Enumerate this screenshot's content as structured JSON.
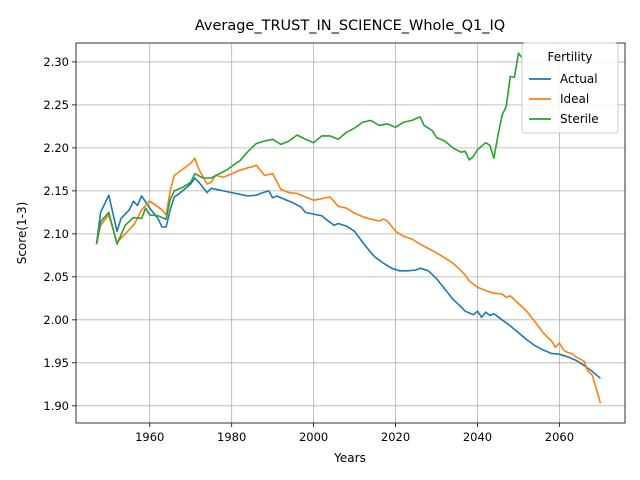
{
  "chart_data": {
    "type": "line",
    "title": "Average_TRUST_IN_SCIENCE_Whole_Q1_IQ",
    "xlabel": "Years",
    "ylabel": "Score(1-3)",
    "xlim": [
      1942,
      2076
    ],
    "ylim": [
      1.88,
      2.322
    ],
    "xticks": [
      1960,
      1980,
      2000,
      2020,
      2040,
      2060
    ],
    "yticks": [
      1.9,
      1.95,
      2.0,
      2.05,
      2.1,
      2.15,
      2.2,
      2.25,
      2.3
    ],
    "ytick_labels": [
      "1.90",
      "1.95",
      "2.00",
      "2.05",
      "2.10",
      "2.15",
      "2.20",
      "2.25",
      "2.30"
    ],
    "grid": true,
    "legend": {
      "title": "Fertility",
      "placement": "top-right"
    },
    "series": [
      {
        "name": "Actual",
        "color": "#1f77b4",
        "x": [
          1947,
          1948,
          1950,
          1952,
          1953,
          1955,
          1956,
          1957,
          1958,
          1960,
          1962,
          1963,
          1964,
          1965,
          1966,
          1967,
          1970,
          1971,
          1972,
          1974,
          1975,
          1977,
          1980,
          1982,
          1984,
          1986,
          1987,
          1989,
          1990,
          1991,
          1993,
          1995,
          1997,
          1998,
          2000,
          2002,
          2003,
          2005,
          2006,
          2008,
          2010,
          2012,
          2014,
          2015,
          2017,
          2019,
          2021,
          2023,
          2025,
          2026,
          2028,
          2030,
          2032,
          2034,
          2036,
          2037,
          2039,
          2040,
          2041,
          2042,
          2043,
          2044,
          2046,
          2048,
          2050,
          2052,
          2054,
          2056,
          2058,
          2060,
          2062,
          2064,
          2066,
          2068,
          2070
        ],
        "y": [
          2.088,
          2.125,
          2.145,
          2.103,
          2.118,
          2.128,
          2.138,
          2.133,
          2.144,
          2.13,
          2.118,
          2.108,
          2.108,
          2.128,
          2.143,
          2.146,
          2.158,
          2.165,
          2.16,
          2.148,
          2.153,
          2.151,
          2.148,
          2.146,
          2.144,
          2.145,
          2.147,
          2.15,
          2.142,
          2.144,
          2.14,
          2.136,
          2.131,
          2.125,
          2.123,
          2.121,
          2.117,
          2.11,
          2.112,
          2.109,
          2.103,
          2.09,
          2.078,
          2.073,
          2.066,
          2.06,
          2.057,
          2.057,
          2.058,
          2.06,
          2.057,
          2.048,
          2.036,
          2.024,
          2.015,
          2.01,
          2.006,
          2.01,
          2.003,
          2.009,
          2.005,
          2.007,
          2.0,
          1.993,
          1.985,
          1.977,
          1.97,
          1.965,
          1.961,
          1.96,
          1.957,
          1.953,
          1.947,
          1.94,
          1.932
        ]
      },
      {
        "name": "Ideal",
        "color": "#ff7f0e",
        "x": [
          1947,
          1948,
          1950,
          1952,
          1954,
          1956,
          1957,
          1958,
          1960,
          1961,
          1963,
          1964,
          1965,
          1966,
          1968,
          1970,
          1971,
          1972,
          1974,
          1975,
          1976,
          1978,
          1980,
          1982,
          1984,
          1985,
          1986,
          1988,
          1990,
          1992,
          1994,
          1996,
          1998,
          2000,
          2002,
          2004,
          2006,
          2008,
          2010,
          2012,
          2014,
          2016,
          2017,
          2018,
          2020,
          2022,
          2024,
          2026,
          2028,
          2030,
          2032,
          2034,
          2036,
          2037,
          2038,
          2040,
          2041,
          2042,
          2044,
          2046,
          2047,
          2048,
          2050,
          2052,
          2054,
          2056,
          2057,
          2058,
          2059,
          2060,
          2061,
          2062,
          2063,
          2064,
          2066,
          2067,
          2068,
          2069,
          2070
        ],
        "y": [
          2.088,
          2.11,
          2.122,
          2.09,
          2.1,
          2.11,
          2.118,
          2.128,
          2.138,
          2.135,
          2.128,
          2.122,
          2.15,
          2.168,
          2.175,
          2.182,
          2.188,
          2.175,
          2.158,
          2.16,
          2.168,
          2.166,
          2.17,
          2.174,
          2.177,
          2.178,
          2.18,
          2.168,
          2.17,
          2.152,
          2.148,
          2.147,
          2.143,
          2.139,
          2.141,
          2.143,
          2.132,
          2.13,
          2.124,
          2.12,
          2.117,
          2.115,
          2.117,
          2.115,
          2.103,
          2.097,
          2.094,
          2.088,
          2.083,
          2.078,
          2.072,
          2.066,
          2.057,
          2.052,
          2.045,
          2.038,
          2.036,
          2.034,
          2.031,
          2.03,
          2.026,
          2.028,
          2.019,
          2.01,
          1.998,
          1.985,
          1.98,
          1.976,
          1.968,
          1.973,
          1.965,
          1.962,
          1.961,
          1.957,
          1.952,
          1.94,
          1.936,
          1.92,
          1.903
        ]
      },
      {
        "name": "Sterile",
        "color": "#2ca02c",
        "x": [
          1947,
          1948,
          1950,
          1952,
          1954,
          1956,
          1958,
          1959,
          1960,
          1962,
          1964,
          1965,
          1966,
          1968,
          1970,
          1971,
          1973,
          1975,
          1977,
          1979,
          1981,
          1982,
          1984,
          1986,
          1988,
          1990,
          1992,
          1994,
          1996,
          1998,
          2000,
          2002,
          2004,
          2006,
          2008,
          2010,
          2012,
          2014,
          2016,
          2018,
          2020,
          2022,
          2024,
          2026,
          2027,
          2029,
          2030,
          2032,
          2034,
          2036,
          2037,
          2038,
          2039,
          2040,
          2042,
          2043,
          2044,
          2045,
          2046,
          2047,
          2048,
          2049,
          2050,
          2051
        ],
        "y": [
          2.088,
          2.114,
          2.125,
          2.088,
          2.11,
          2.119,
          2.118,
          2.13,
          2.122,
          2.121,
          2.117,
          2.14,
          2.15,
          2.154,
          2.16,
          2.17,
          2.165,
          2.165,
          2.17,
          2.175,
          2.182,
          2.185,
          2.196,
          2.205,
          2.208,
          2.21,
          2.204,
          2.208,
          2.215,
          2.21,
          2.206,
          2.214,
          2.214,
          2.21,
          2.218,
          2.223,
          2.23,
          2.232,
          2.226,
          2.228,
          2.224,
          2.23,
          2.232,
          2.236,
          2.226,
          2.22,
          2.212,
          2.208,
          2.2,
          2.195,
          2.196,
          2.186,
          2.19,
          2.198,
          2.206,
          2.203,
          2.188,
          2.215,
          2.238,
          2.248,
          2.283,
          2.282,
          2.31,
          2.304
        ]
      }
    ]
  }
}
